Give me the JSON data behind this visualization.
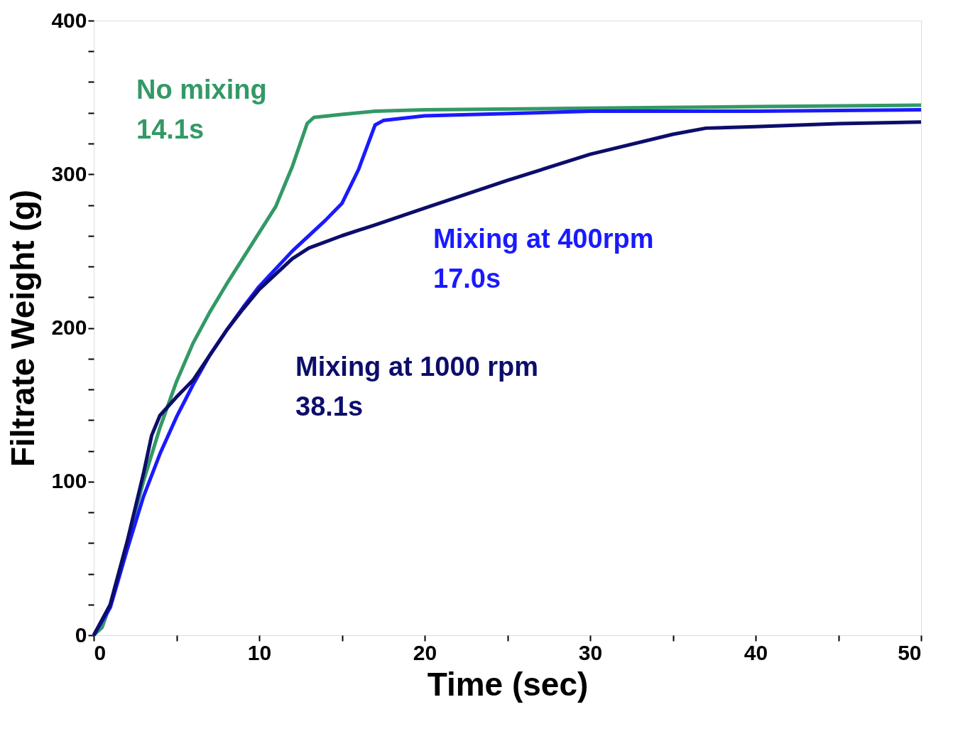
{
  "chart_data": {
    "type": "line",
    "xlabel": "Time (sec)",
    "ylabel": "Filtrate Weight (g)",
    "xlim": [
      0,
      50
    ],
    "ylim": [
      0,
      400
    ],
    "xticks": [
      0,
      {
        "value": 5,
        "label": null
      },
      10,
      {
        "value": 15,
        "label": null
      },
      20,
      {
        "value": 25,
        "label": null
      },
      30,
      {
        "value": 35,
        "label": null
      },
      40,
      {
        "value": 45,
        "label": null
      },
      50
    ],
    "yticks": [
      0,
      {
        "value": 20,
        "label": null
      },
      {
        "value": 40,
        "label": null
      },
      {
        "value": 60,
        "label": null
      },
      {
        "value": 80,
        "label": null
      },
      100,
      {
        "value": 120,
        "label": null
      },
      {
        "value": 140,
        "label": null
      },
      {
        "value": 160,
        "label": null
      },
      {
        "value": 180,
        "label": null
      },
      200,
      {
        "value": 220,
        "label": null
      },
      {
        "value": 240,
        "label": null
      },
      {
        "value": 260,
        "label": null
      },
      {
        "value": 280,
        "label": null
      },
      300,
      {
        "value": 320,
        "label": null
      },
      {
        "value": 340,
        "label": null
      },
      {
        "value": 360,
        "label": null
      },
      {
        "value": 380,
        "label": null
      },
      400
    ],
    "grid": false,
    "legend": false,
    "marker": "none",
    "line_style": "solid",
    "annotations": [
      "14.1s",
      "17.0s",
      "38.1s"
    ],
    "series": [
      {
        "name": "No mixing",
        "color": "#339966",
        "x": [
          0,
          0.5,
          1,
          2,
          3,
          4,
          5,
          6,
          7,
          8,
          9,
          10,
          11,
          12,
          12.9,
          13.3,
          15,
          17,
          20,
          30,
          40,
          50
        ],
        "values": [
          0,
          5,
          20,
          60,
          100,
          135,
          165,
          190,
          210,
          228,
          245,
          262,
          279,
          305,
          333,
          337,
          339,
          341,
          342,
          343,
          344,
          345
        ]
      },
      {
        "name": "Mixing at 400rpm",
        "color": "#1a1aff",
        "x": [
          0,
          1,
          2,
          3,
          4,
          5,
          6,
          7,
          8,
          9,
          10,
          12,
          14,
          15,
          16,
          17,
          17.5,
          20,
          30,
          40,
          50
        ],
        "values": [
          0,
          18,
          55,
          90,
          118,
          142,
          163,
          182,
          198,
          213,
          227,
          250,
          270,
          281,
          303,
          332,
          335,
          338,
          341,
          341,
          342
        ]
      },
      {
        "name": "Mixing at 1000 rpm",
        "color": "#0d0d6b",
        "x": [
          0,
          1,
          2,
          3,
          3.5,
          4,
          5,
          6,
          7,
          8,
          9,
          10,
          12,
          13,
          15,
          17,
          20,
          25,
          30,
          35,
          37,
          40,
          45,
          50
        ],
        "values": [
          0,
          20,
          60,
          105,
          130,
          143,
          155,
          166,
          182,
          198,
          212,
          225,
          245,
          252,
          260,
          267,
          278,
          296,
          313,
          326,
          330,
          331,
          333,
          334
        ]
      }
    ]
  }
}
